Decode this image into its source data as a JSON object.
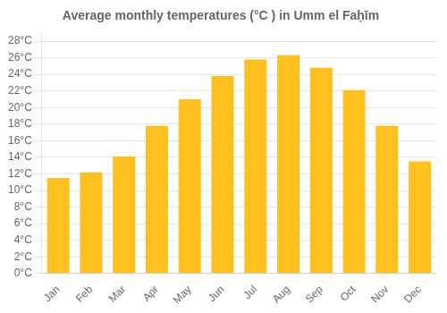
{
  "chart_data": {
    "type": "bar",
    "title": "Average monthly temperatures (°C ) in Umm el Faḥīm",
    "categories": [
      "Jan",
      "Feb",
      "Mar",
      "Apr",
      "May",
      "Jun",
      "Jul",
      "Aug",
      "Sep",
      "Oct",
      "Nov",
      "Dec"
    ],
    "values": [
      11.5,
      12.2,
      14.1,
      17.8,
      21.0,
      23.8,
      25.8,
      26.3,
      24.8,
      22.1,
      17.8,
      13.5
    ],
    "color": "#FFC020",
    "ylim": [
      0,
      29
    ],
    "yticks": [
      {
        "value": 0,
        "label": "0°C"
      },
      {
        "value": 2,
        "label": "2°C"
      },
      {
        "value": 4,
        "label": "4°C"
      },
      {
        "value": 6,
        "label": "6°C"
      },
      {
        "value": 8,
        "label": "8°C"
      },
      {
        "value": 10,
        "label": "10°C"
      },
      {
        "value": 12,
        "label": "12°C"
      },
      {
        "value": 14,
        "label": "14°C"
      },
      {
        "value": 16,
        "label": "16°C"
      },
      {
        "value": 18,
        "label": "18°C"
      },
      {
        "value": 20,
        "label": "20°C"
      },
      {
        "value": 22,
        "label": "22°C"
      },
      {
        "value": 24,
        "label": "24°C"
      },
      {
        "value": 26,
        "label": "26°C"
      },
      {
        "value": 28,
        "label": "28°C"
      }
    ],
    "grid": true
  }
}
